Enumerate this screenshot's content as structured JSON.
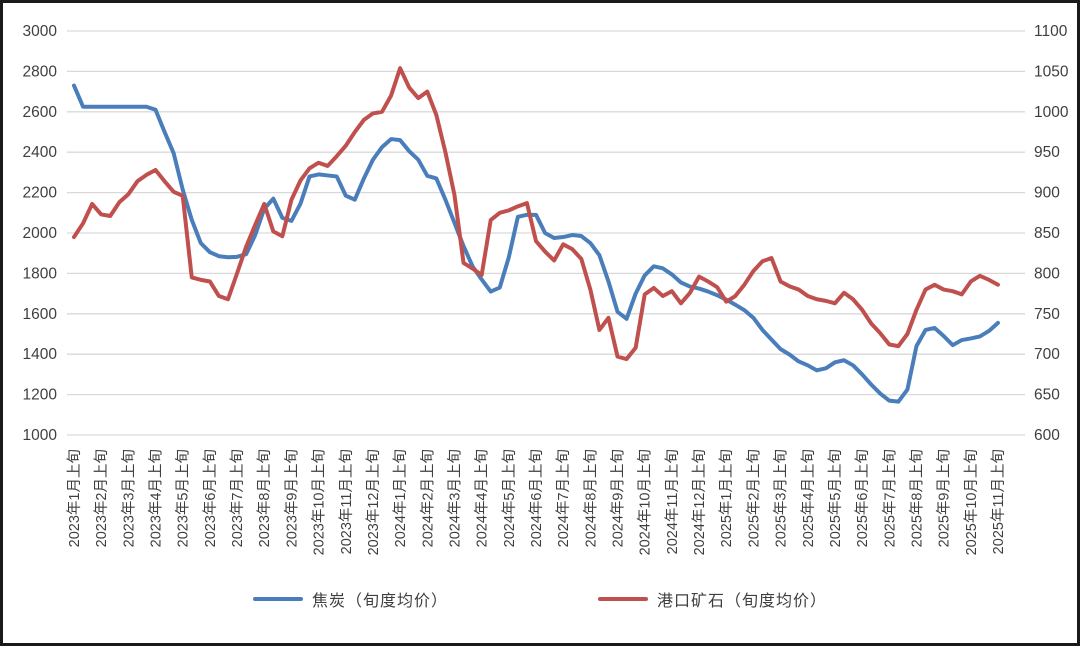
{
  "chart_data": {
    "type": "line",
    "title": "",
    "points_per_month": 3,
    "period_note": "旬度 (ten-day periods: 上/中/下 per month), labels shown monthly at 上旬",
    "grid": true,
    "legend_position": "bottom",
    "colors": {
      "coke_blue": "#4A7EBB",
      "ore_red": "#C0504D",
      "gridline": "#D9D9D9",
      "axis_text": "#3F3F3F",
      "frame": "#1A1A1A"
    },
    "left_axis": {
      "min": 1000,
      "max": 3000,
      "step": 200,
      "ticks": [
        "3000",
        "2800",
        "2600",
        "2400",
        "2200",
        "2000",
        "1800",
        "1600",
        "1400",
        "1200",
        "1000"
      ]
    },
    "right_axis": {
      "min": 600,
      "max": 1100,
      "step": 50,
      "ticks": [
        "1100",
        "1050",
        "1000",
        "950",
        "900",
        "850",
        "800",
        "750",
        "700",
        "650",
        "600"
      ]
    },
    "x_tick_labels": [
      "2023年1月上旬",
      "2023年2月上旬",
      "2023年3月上旬",
      "2023年4月上旬",
      "2023年5月上旬",
      "2023年6月上旬",
      "2023年7月上旬",
      "2023年8月上旬",
      "2023年9月上旬",
      "2023年10月上旬",
      "2023年11月上旬",
      "2023年12月上旬",
      "2024年1月上旬",
      "2024年2月上旬",
      "2024年3月上旬",
      "2024年4月上旬",
      "2024年5月上旬",
      "2024年6月上旬",
      "2024年7月上旬",
      "2024年8月上旬",
      "2024年9月上旬",
      "2024年10月上旬",
      "2024年11月上旬",
      "2024年12月上旬",
      "2025年1月上旬",
      "2025年2月上旬",
      "2025年3月上旬",
      "2025年4月上旬",
      "2025年5月上旬",
      "2025年6月上旬",
      "2025年7月上旬",
      "2025年8月上旬",
      "2025年9月上旬",
      "2025年10月上旬",
      "2025年11月上旬"
    ],
    "series": [
      {
        "name": "焦炭（旬度均价）",
        "axis": "left",
        "color": "#4A7EBB",
        "values": [
          2730,
          2625,
          2625,
          2625,
          2625,
          2625,
          2625,
          2625,
          2625,
          2610,
          2500,
          2395,
          2215,
          2065,
          1950,
          1905,
          1885,
          1880,
          1882,
          1895,
          1990,
          2120,
          2170,
          2075,
          2060,
          2145,
          2280,
          2290,
          2285,
          2280,
          2185,
          2165,
          2270,
          2363,
          2425,
          2465,
          2460,
          2405,
          2363,
          2283,
          2270,
          2165,
          2050,
          1935,
          1835,
          1770,
          1710,
          1730,
          1880,
          2080,
          2090,
          2090,
          2000,
          1975,
          1980,
          1990,
          1985,
          1950,
          1890,
          1760,
          1610,
          1575,
          1700,
          1790,
          1835,
          1825,
          1795,
          1755,
          1735,
          1725,
          1710,
          1692,
          1670,
          1645,
          1618,
          1580,
          1520,
          1472,
          1425,
          1398,
          1364,
          1345,
          1320,
          1330,
          1360,
          1370,
          1345,
          1300,
          1250,
          1205,
          1170,
          1165,
          1225,
          1440,
          1520,
          1530,
          1490,
          1445,
          1470,
          1478,
          1488,
          1515,
          1555
        ]
      },
      {
        "name": "港口矿石（旬度均价）",
        "axis": "right",
        "color": "#C0504D",
        "values": [
          845,
          862,
          886,
          873,
          871,
          888,
          898,
          914,
          922,
          928,
          914,
          901,
          896,
          795,
          792,
          790,
          772,
          768,
          800,
          833,
          860,
          886,
          852,
          846,
          891,
          915,
          930,
          937,
          933,
          945,
          958,
          975,
          990,
          998,
          1000,
          1020,
          1054,
          1030,
          1017,
          1025,
          996,
          950,
          897,
          813,
          806,
          798,
          866,
          875,
          878,
          883,
          887,
          840,
          827,
          816,
          836,
          830,
          818,
          780,
          730,
          745,
          697,
          694,
          708,
          774,
          782,
          772,
          778,
          763,
          776,
          796,
          790,
          783,
          765,
          772,
          786,
          803,
          815,
          819,
          790,
          784,
          780,
          772,
          768,
          766,
          763,
          776,
          768,
          755,
          738,
          726,
          712,
          710,
          725,
          755,
          780,
          786,
          780,
          778,
          774,
          790,
          797,
          792,
          786
        ]
      }
    ]
  }
}
